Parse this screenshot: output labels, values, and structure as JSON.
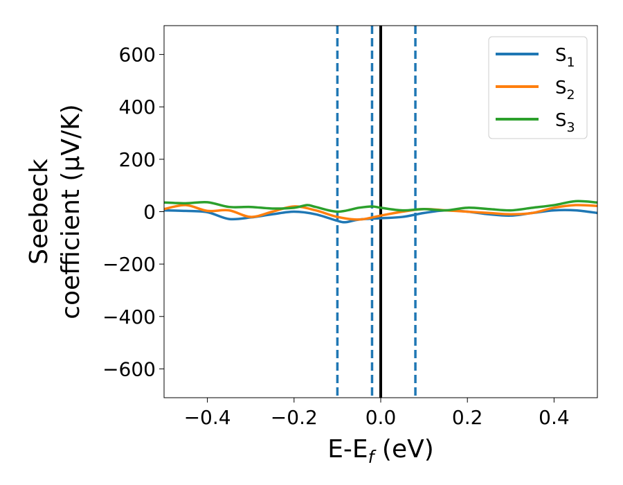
{
  "chart_data": {
    "type": "line",
    "xlabel": {
      "main": "E-E",
      "sub": "f",
      "tail": " (eV)"
    },
    "ylabel": {
      "line1": "Seebeck",
      "line2": "coefficient  (μV/K)"
    },
    "xlim": [
      -0.5,
      0.5
    ],
    "ylim": [
      -710,
      710
    ],
    "xticks": [
      -0.4,
      -0.2,
      0.0,
      0.2,
      0.4
    ],
    "xtick_labels": [
      "−0.4",
      "−0.2",
      "0.0",
      "0.2",
      "0.4"
    ],
    "yticks": [
      -600,
      -400,
      -200,
      0,
      200,
      400,
      600
    ],
    "ytick_labels": [
      "−600",
      "−400",
      "−200",
      "0",
      "200",
      "400",
      "600"
    ],
    "grid": false,
    "legend_position": "top-right",
    "vlines": [
      {
        "x": -0.1,
        "style": "dashed",
        "color": "#1f77b4"
      },
      {
        "x": -0.02,
        "style": "dashed",
        "color": "#1f77b4"
      },
      {
        "x": 0.08,
        "style": "dashed",
        "color": "#1f77b4"
      },
      {
        "x": 0.0,
        "style": "solid",
        "color": "#000000"
      }
    ],
    "series": [
      {
        "name": "S",
        "sub": "1",
        "color": "#1f77b4",
        "x": [
          -0.5,
          -0.45,
          -0.4,
          -0.35,
          -0.3,
          -0.25,
          -0.2,
          -0.15,
          -0.1,
          -0.08,
          -0.05,
          0.0,
          0.05,
          0.1,
          0.15,
          0.2,
          0.25,
          0.3,
          0.35,
          0.4,
          0.45,
          0.5
        ],
        "values": [
          5,
          3,
          -2,
          -28,
          -22,
          -10,
          0,
          -10,
          -35,
          -40,
          -30,
          -25,
          -20,
          -5,
          5,
          0,
          -10,
          -15,
          -5,
          5,
          5,
          -5
        ]
      },
      {
        "name": "S",
        "sub": "2",
        "color": "#ff7f0e",
        "x": [
          -0.5,
          -0.45,
          -0.4,
          -0.35,
          -0.3,
          -0.25,
          -0.2,
          -0.15,
          -0.1,
          -0.05,
          0.0,
          0.05,
          0.1,
          0.15,
          0.2,
          0.25,
          0.3,
          0.35,
          0.4,
          0.45,
          0.5
        ],
        "values": [
          10,
          25,
          3,
          5,
          -20,
          0,
          20,
          5,
          -20,
          -30,
          -15,
          0,
          10,
          5,
          0,
          -5,
          -10,
          -5,
          15,
          25,
          22
        ]
      },
      {
        "name": "S",
        "sub": "3",
        "color": "#2ca02c",
        "x": [
          -0.5,
          -0.45,
          -0.4,
          -0.35,
          -0.3,
          -0.25,
          -0.2,
          -0.17,
          -0.15,
          -0.1,
          -0.05,
          -0.02,
          0.0,
          0.05,
          0.1,
          0.15,
          0.2,
          0.25,
          0.3,
          0.35,
          0.4,
          0.45,
          0.5
        ],
        "values": [
          35,
          32,
          36,
          18,
          18,
          12,
          15,
          25,
          18,
          0,
          15,
          20,
          15,
          5,
          10,
          5,
          15,
          10,
          5,
          15,
          25,
          40,
          35
        ]
      }
    ]
  }
}
